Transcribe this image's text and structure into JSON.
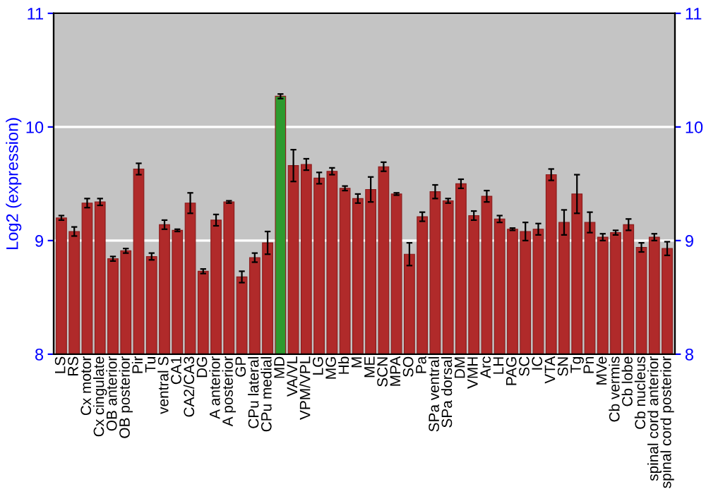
{
  "chart_data": {
    "type": "bar",
    "ylabel": "Log2 (expression)",
    "categories": [
      "LS",
      "RS",
      "Cx motor",
      "Cx cingulate",
      "OB anterior",
      "OB posterior",
      "Pir",
      "Tu",
      "ventral S",
      "CA1",
      "CA2/CA3",
      "DG",
      "A anterior",
      "A posterior",
      "GP",
      "CPu lateral",
      "CPu medial",
      "MD",
      "VA/VL",
      "VPM/VPL",
      "LG",
      "MG",
      "Hb",
      "M",
      "ME",
      "SCN",
      "MPA",
      "SO",
      "Pa",
      "SPa ventral",
      "SPa dorsal",
      "DM",
      "VMH",
      "Arc",
      "LH",
      "PAG",
      "SC",
      "IC",
      "VTA",
      "SN",
      "Tg",
      "Pn",
      "MVe",
      "Cb vermis",
      "Cb lobe",
      "Cb nucleus",
      "spinal cord anterior",
      "spinal cord posterior"
    ],
    "values": [
      9.2,
      9.08,
      9.33,
      9.34,
      8.84,
      8.91,
      9.63,
      8.86,
      9.14,
      9.09,
      9.33,
      8.73,
      9.18,
      9.34,
      8.68,
      8.85,
      8.98,
      10.27,
      9.66,
      9.67,
      9.55,
      9.61,
      9.46,
      9.37,
      9.45,
      9.65,
      9.41,
      8.88,
      9.21,
      9.43,
      9.35,
      9.5,
      9.22,
      9.39,
      9.19,
      9.1,
      9.08,
      9.1,
      9.58,
      9.16,
      9.41,
      9.16,
      9.03,
      9.07,
      9.14,
      8.94,
      9.03,
      8.93
    ],
    "errors": [
      0.02,
      0.04,
      0.04,
      0.03,
      0.02,
      0.02,
      0.05,
      0.03,
      0.04,
      0.01,
      0.09,
      0.02,
      0.05,
      0.01,
      0.05,
      0.04,
      0.1,
      0.02,
      0.14,
      0.05,
      0.05,
      0.03,
      0.02,
      0.04,
      0.11,
      0.04,
      0.01,
      0.1,
      0.04,
      0.06,
      0.02,
      0.04,
      0.04,
      0.05,
      0.03,
      0.01,
      0.08,
      0.05,
      0.05,
      0.11,
      0.17,
      0.09,
      0.03,
      0.02,
      0.05,
      0.04,
      0.03,
      0.06
    ],
    "colors": [
      "#b02a2a",
      "#b02a2a",
      "#b02a2a",
      "#b02a2a",
      "#b02a2a",
      "#b02a2a",
      "#b02a2a",
      "#b02a2a",
      "#b02a2a",
      "#b02a2a",
      "#b02a2a",
      "#b02a2a",
      "#b02a2a",
      "#b02a2a",
      "#b02a2a",
      "#b02a2a",
      "#b02a2a",
      "#2e9a2e",
      "#b02a2a",
      "#b02a2a",
      "#b02a2a",
      "#b02a2a",
      "#b02a2a",
      "#b02a2a",
      "#b02a2a",
      "#b02a2a",
      "#b02a2a",
      "#b02a2a",
      "#b02a2a",
      "#b02a2a",
      "#b02a2a",
      "#b02a2a",
      "#b02a2a",
      "#b02a2a",
      "#b02a2a",
      "#b02a2a",
      "#b02a2a",
      "#b02a2a",
      "#b02a2a",
      "#b02a2a",
      "#b02a2a",
      "#b02a2a",
      "#b02a2a",
      "#b02a2a",
      "#b02a2a",
      "#b02a2a",
      "#b02a2a",
      "#b02a2a"
    ],
    "ylim": [
      8,
      11
    ],
    "yticks": [
      8,
      9,
      10,
      11
    ],
    "y2lim": [
      8,
      11
    ],
    "y2ticks": [
      8,
      9,
      10,
      11
    ],
    "grid": "y"
  }
}
